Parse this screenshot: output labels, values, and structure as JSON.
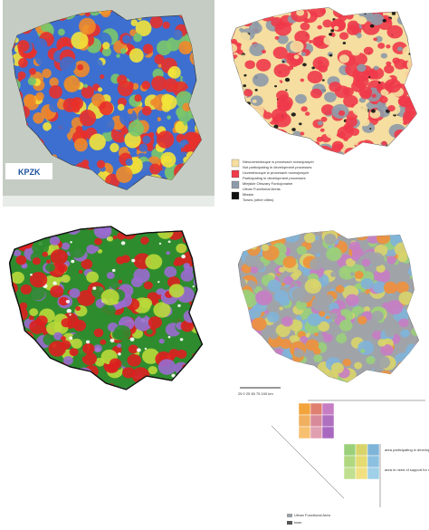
{
  "panels": [
    {
      "logo": "KPZK"
    },
    {
      "legend": [
        "Nieuczestniczące w procesach rozwojowych",
        "Not participating in development processes",
        "Uczestniczące w procesach rozwojowych",
        "Participating in development processes",
        "Miejskie Obszary Funkcjonalne",
        "Urban Functional Areas",
        "Miasta",
        "Towns (other cities)"
      ]
    },
    {},
    {
      "scale": "25  0  25  50  75  100 km",
      "legend": [
        "area participating in development processes",
        "area in need of support for development processes",
        "Urban Functional Area",
        "town"
      ]
    }
  ]
}
